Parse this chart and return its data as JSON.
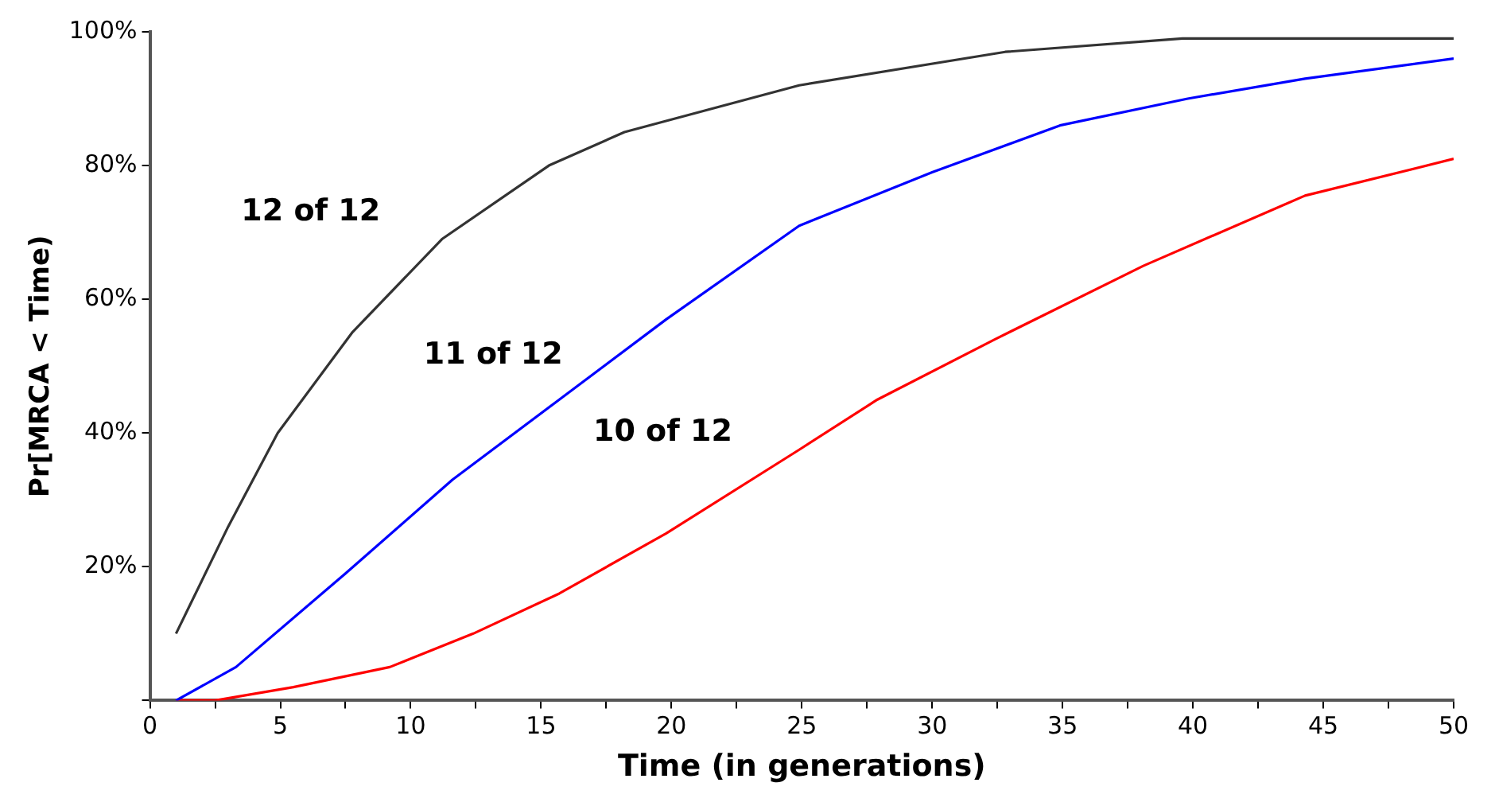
{
  "chart_data": {
    "type": "line",
    "xlabel": "Time (in generations)",
    "ylabel": "Pr[MRCA < Time)",
    "xlim": [
      0,
      50
    ],
    "ylim": [
      0,
      100
    ],
    "xticks": [
      0,
      {
        "value": 2.5,
        "label": null
      },
      5,
      {
        "value": 7.5,
        "label": null
      },
      10,
      {
        "value": 12.5,
        "label": null
      },
      15,
      {
        "value": 17.5,
        "label": null
      },
      20,
      {
        "value": 22.5,
        "label": null
      },
      25,
      {
        "value": 27.5,
        "label": null
      },
      30,
      {
        "value": 32.5,
        "label": null
      },
      35,
      {
        "value": 37.5,
        "label": null
      },
      40,
      {
        "value": 42.5,
        "label": null
      },
      45,
      {
        "value": 47.5,
        "label": null
      },
      50
    ],
    "yticks": [
      {
        "value": 0,
        "label": null
      },
      {
        "value": 20,
        "label": "20%"
      },
      {
        "value": 40,
        "label": "40%"
      },
      {
        "value": 60,
        "label": "60%"
      },
      {
        "value": 80,
        "label": "80%"
      },
      {
        "value": 100,
        "label": "100%"
      }
    ],
    "grid": false,
    "legend": false,
    "marker": "none",
    "line_style": "solid",
    "series": [
      {
        "name": "12 of 12",
        "color": "#333333",
        "x": [
          1,
          3,
          4.9,
          7.75,
          11.2,
          15.3,
          18.2,
          24.9,
          32.8,
          39.6,
          50
        ],
        "values": [
          10,
          26,
          40,
          55,
          69,
          80,
          85,
          92,
          97,
          99,
          99
        ]
      },
      {
        "name": "11 of 12",
        "color": "#0000ff",
        "x": [
          1,
          3.3,
          7.5,
          11.6,
          15.7,
          19.8,
          24.9,
          30,
          34.9,
          39.8,
          44.3,
          50
        ],
        "values": [
          0,
          5,
          19,
          33,
          45,
          57,
          71,
          79,
          86,
          90,
          93,
          96
        ]
      },
      {
        "name": "10 of 12",
        "color": "#ff0000",
        "x": [
          1,
          2.5,
          5.5,
          9.2,
          12.4,
          15.7,
          19.8,
          24.9,
          27.9,
          32.4,
          38.1,
          44.3,
          50
        ],
        "values": [
          0,
          0,
          2,
          5,
          10,
          16,
          25,
          37.5,
          45,
          54,
          65,
          75.5,
          81
        ]
      }
    ]
  }
}
